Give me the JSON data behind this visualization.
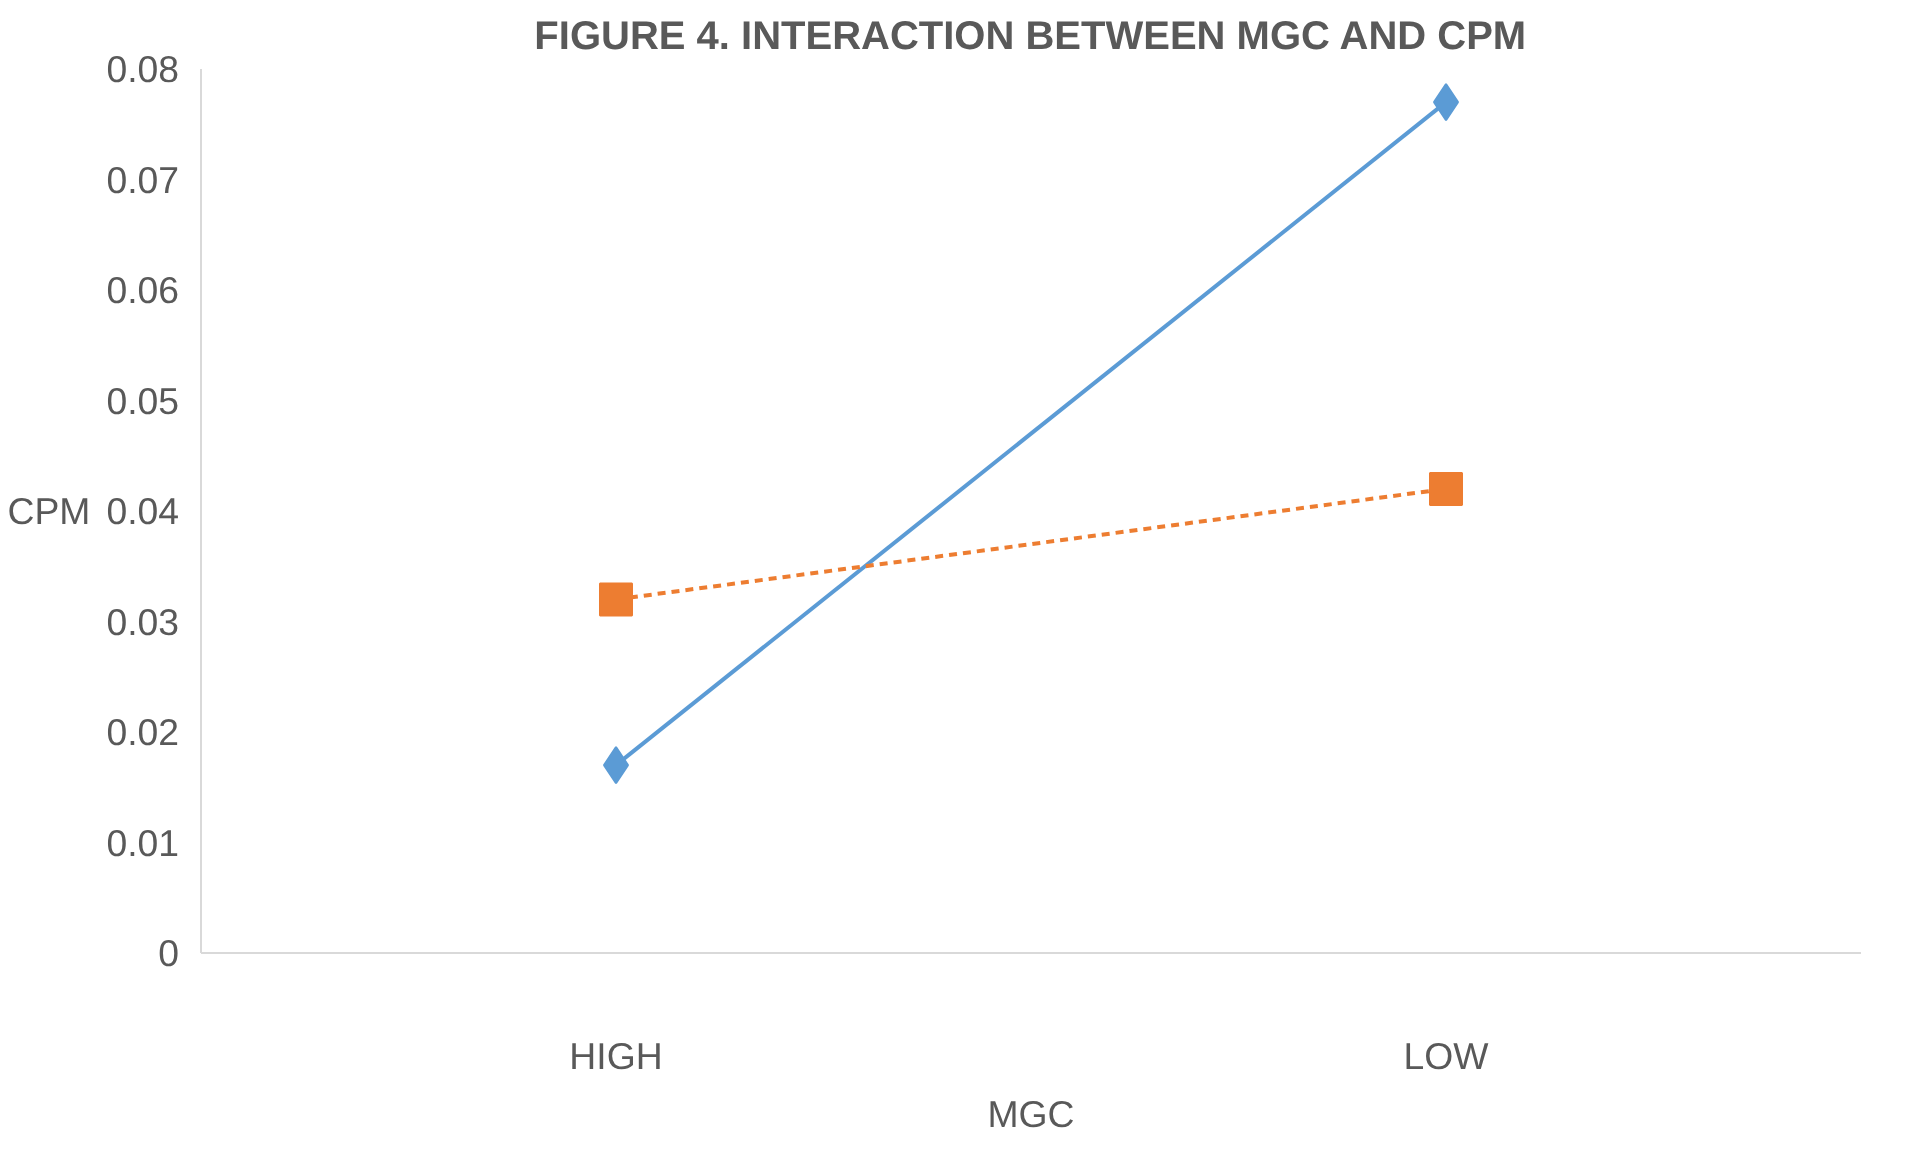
{
  "chart_data": {
    "type": "line",
    "title": "FIGURE 4. INTERACTION BETWEEN MGC AND CPM",
    "xlabel": "MGC",
    "ylabel": "CPM",
    "categories": [
      "HIGH",
      "LOW"
    ],
    "series": [
      {
        "color": "#5b9bd5",
        "values": [
          0.017,
          0.077
        ],
        "marker": "diamond",
        "line_style": "solid"
      },
      {
        "color": "#ed7d31",
        "values": [
          0.032,
          0.042
        ],
        "marker": "square",
        "line_style": "dashed"
      }
    ],
    "ylim": [
      0,
      0.08
    ],
    "yticks": [
      0,
      0.01,
      0.02,
      0.03,
      0.04,
      0.05,
      0.06,
      0.07,
      0.08
    ],
    "grid": false
  }
}
